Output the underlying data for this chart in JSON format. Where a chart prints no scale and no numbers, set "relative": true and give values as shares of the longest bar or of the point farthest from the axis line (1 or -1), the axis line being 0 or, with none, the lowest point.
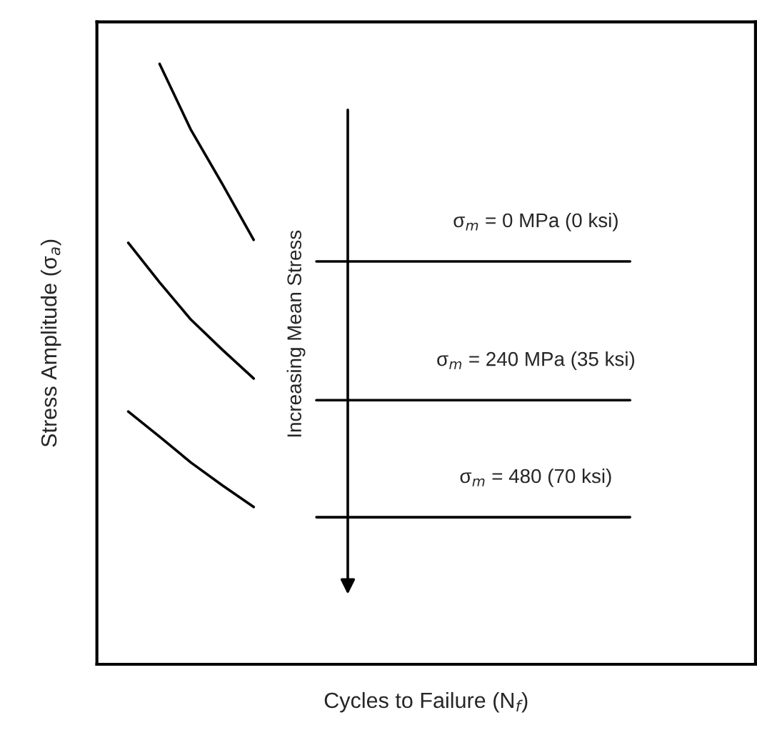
{
  "chart_data": {
    "type": "line",
    "relative": true,
    "xlabel": "Cycles to Failure (N$_{f}$)",
    "ylabel": "Stress Amplitude (σ$_{a}$)",
    "categories": [
      null,
      null,
      null,
      null,
      null,
      null,
      null,
      null,
      null,
      null,
      null,
      null,
      null,
      null,
      null,
      null,
      null
    ],
    "annotations": [
      "Increasing Mean Stress"
    ],
    "legend": false,
    "tick_labels": false,
    "marker": "none",
    "line_style": "solid",
    "series": [
      {
        "color": "#000000",
        "values": [
          null,
          1.0,
          0.89,
          0.8,
          0.707,
          null,
          null,
          null,
          null,
          null,
          null,
          null,
          null,
          null,
          null,
          null,
          null
        ]
      },
      {
        "color": "#000000",
        "values": [
          0.702,
          0.636,
          0.574,
          0.524,
          0.476,
          null,
          null,
          null,
          null,
          null,
          null,
          null,
          null,
          null,
          null,
          null,
          null
        ]
      },
      {
        "color": "#000000",
        "values": [
          0.421,
          0.379,
          0.336,
          0.298,
          0.262,
          null,
          null,
          null,
          null,
          null,
          null,
          null,
          null,
          null,
          null,
          null,
          null
        ]
      },
      {
        "name": "σ$_{m}$ = 0 MPa (0 ksi)",
        "color": "#000000",
        "values": [
          null,
          null,
          null,
          null,
          null,
          null,
          0.671,
          0.671,
          0.671,
          0.671,
          0.671,
          0.671,
          0.671,
          0.671,
          0.671,
          0.671,
          0.671
        ]
      },
      {
        "name": "σ$_{m}$ = 240 MPa (35 ksi)",
        "color": "#000000",
        "values": [
          null,
          null,
          null,
          null,
          null,
          null,
          0.44,
          0.44,
          0.44,
          0.44,
          0.44,
          0.44,
          0.44,
          0.44,
          0.44,
          0.44,
          0.44
        ]
      },
      {
        "name": "σ$_{m}$ = 480 (70 ksi)",
        "color": "#000000",
        "values": [
          null,
          null,
          null,
          null,
          null,
          null,
          0.245,
          0.245,
          0.245,
          0.245,
          0.245,
          0.245,
          0.245,
          0.245,
          0.245,
          0.245,
          0.245
        ]
      }
    ]
  }
}
